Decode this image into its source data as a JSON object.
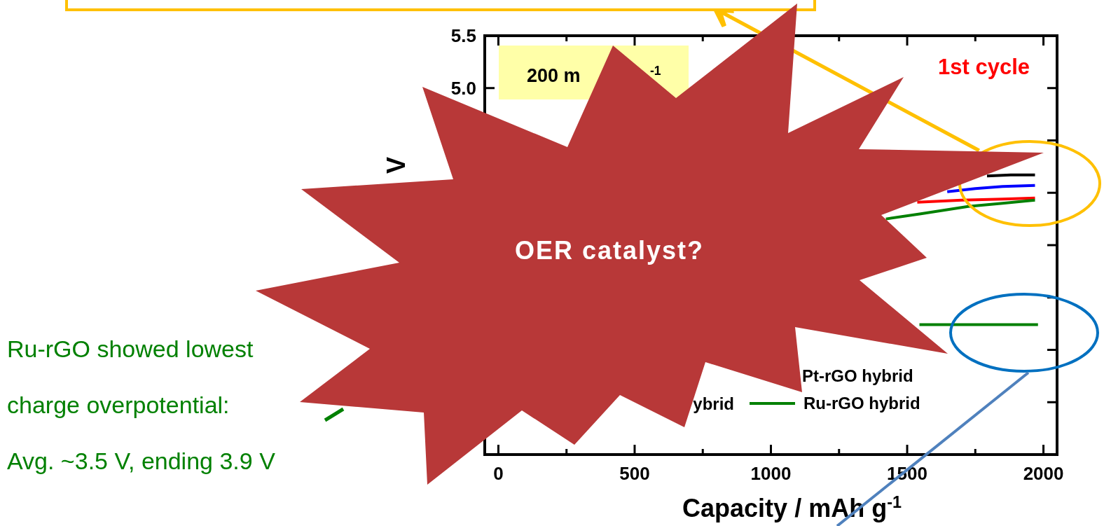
{
  "chart_data": {
    "type": "line",
    "xlabel": "Capacity / mAh g$^{-1}$",
    "ylabel": "V",
    "xlim": [
      -50,
      2050
    ],
    "ylim": [
      1.5,
      5.5
    ],
    "xticks": [
      0,
      {
        "value": 250,
        "label": null
      },
      500,
      {
        "value": 750,
        "label": null
      },
      1000,
      {
        "value": 1250,
        "label": null
      },
      1500,
      {
        "value": 1750,
        "label": null
      },
      2000
    ],
    "yticks": [
      {
        "value": 1.5,
        "label": null
      },
      {
        "value": 2.0,
        "label": null
      },
      {
        "value": 2.5,
        "label": null
      },
      {
        "value": 3.0,
        "label": null
      },
      {
        "value": 3.5,
        "label": null
      },
      {
        "value": 4.0,
        "label": null
      },
      {
        "value": 4.5,
        "label": null
      },
      {
        "value": 5.0,
        "label": "5.0"
      },
      5.5
    ],
    "series": [
      {
        "color": "#000000",
        "x": [
          1793,
          1880,
          1969
        ],
        "values": [
          4.16,
          4.17,
          4.17
        ]
      },
      {
        "color": "#0000ff",
        "x": [
          1647,
          1750,
          1850,
          1969
        ],
        "values": [
          4.01,
          4.04,
          4.06,
          4.07
        ]
      },
      {
        "color": "#ff0000",
        "x": [
          1537,
          1700,
          1850,
          1969
        ],
        "values": [
          3.91,
          3.93,
          3.94,
          3.95
        ]
      },
      {
        "name": "Ru-rGO hybrid",
        "color": "#008000",
        "x": [
          1422,
          1550,
          1724,
          1850,
          1969
        ],
        "values": [
          3.75,
          3.8,
          3.87,
          3.9,
          3.93
        ]
      },
      {
        "color": "#008000",
        "x": [
          1545,
          1980
        ],
        "values": [
          2.74,
          2.74
        ]
      }
    ],
    "legend": "bottom right",
    "marker": "none",
    "line_style": "solid",
    "grid": false,
    "annotations": [
      "Ru-rGO showed lowest",
      "charge overpotential:",
      "Avg. ~3.5 V, ending 3.9 V",
      "1st cycle",
      "200 m",
      "$^{-1}$",
      "OER catalyst?",
      "Pt-rGO hybrid",
      "ybrid"
    ]
  }
}
